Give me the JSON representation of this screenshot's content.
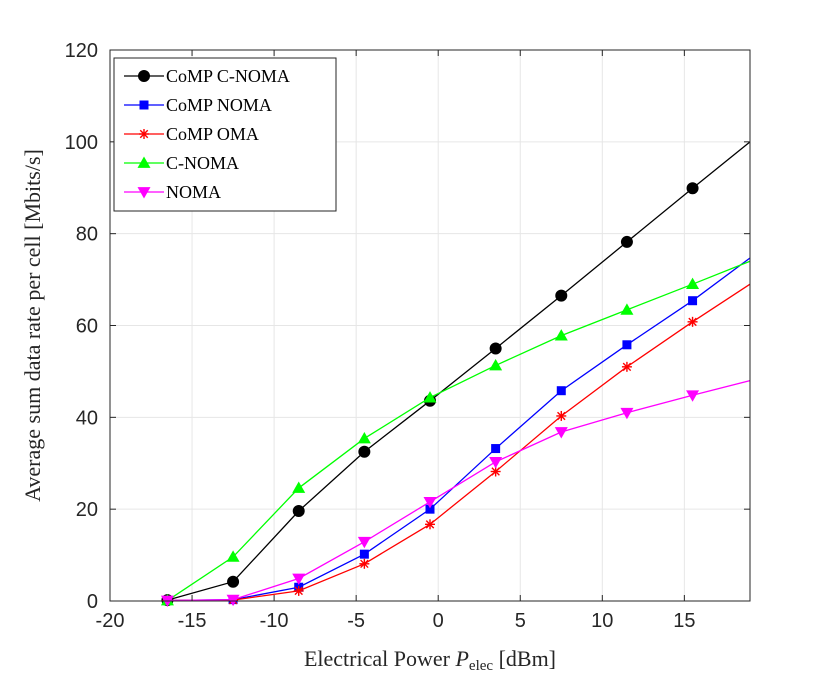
{
  "chart_data": {
    "type": "line",
    "title": "",
    "xlabel": "Electrical Power P_elec [dBm]",
    "xlabel_main": "Electrical Power ",
    "xlabel_symbol": "P",
    "xlabel_sub": "elec",
    "xlabel_unit": " [dBm]",
    "ylabel": "Average sum data rate per cell [Mbits/s]",
    "xlim": [
      -20,
      19
    ],
    "ylim": [
      0,
      120
    ],
    "xticks": [
      -20,
      -15,
      -10,
      -5,
      0,
      5,
      10,
      15
    ],
    "yticks": [
      0,
      20,
      40,
      60,
      80,
      100,
      120
    ],
    "grid": true,
    "legend_position": "top-left",
    "x": [
      -16.5,
      -12.5,
      -8.5,
      -4.5,
      -0.5,
      3.5,
      7.5,
      11.5,
      15.5,
      19
    ],
    "series": [
      {
        "name": "CoMP C-NOMA",
        "color": "#000000",
        "marker": "circle",
        "values": [
          0.2,
          4.2,
          19.6,
          32.5,
          43.6,
          55.0,
          66.5,
          78.2,
          89.9,
          100.0
        ]
      },
      {
        "name": "CoMP NOMA",
        "color": "#0000ff",
        "marker": "square",
        "values": [
          0.1,
          0.3,
          3.0,
          10.2,
          20.0,
          33.2,
          45.8,
          55.8,
          65.4,
          74.7
        ]
      },
      {
        "name": "CoMP OMA",
        "color": "#ff0000",
        "marker": "asterisk",
        "values": [
          0.1,
          0.2,
          2.2,
          8.1,
          16.7,
          28.2,
          40.3,
          51.0,
          60.8,
          69.0
        ]
      },
      {
        "name": "C-NOMA",
        "color": "#00ff00",
        "marker": "triangle-up",
        "values": [
          0.1,
          9.6,
          24.6,
          35.4,
          44.3,
          51.3,
          57.8,
          63.4,
          69.0,
          74.0
        ]
      },
      {
        "name": "NOMA",
        "color": "#ff00ff",
        "marker": "triangle-down",
        "values": [
          0.1,
          0.3,
          4.9,
          12.9,
          21.6,
          30.3,
          36.8,
          41.0,
          44.8,
          48.0
        ]
      }
    ]
  }
}
